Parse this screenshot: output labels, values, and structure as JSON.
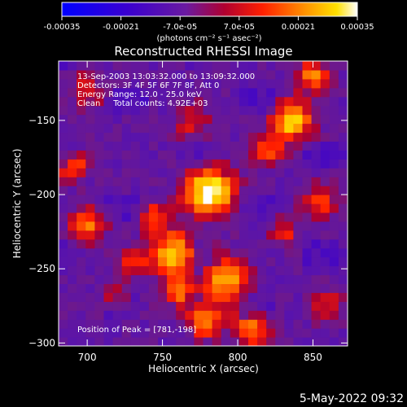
{
  "colorbar": {
    "tick_labels": [
      "-0.00035",
      "-0.00021",
      "-7.0e-05",
      "7.0e-05",
      "0.00021",
      "0.00035"
    ],
    "unit_label": "(photons cm⁻² s⁻¹ asec⁻²)"
  },
  "chart_data": {
    "type": "heatmap",
    "title": "Reconstructed RHESSI Image",
    "xlabel": "Heliocentric X (arcsec)",
    "ylabel": "Heliocentric Y (arcsec)",
    "xlim": [
      681,
      873
    ],
    "ylim": [
      -302,
      -110
    ],
    "x_ticks": [
      700,
      750,
      800,
      850
    ],
    "y_ticks": [
      -150,
      -200,
      -250,
      -300
    ],
    "color_range": [
      -0.00035,
      0.00035
    ],
    "colormap": "blue-purple-red-yellow-white",
    "annotations": [
      "13-Sep-2003 13:03:32.000 to 13:09:32.000",
      "Detectors: 3F 4F 5F 6F 7F 8F, Att 0",
      "Energy Range: 12.0 - 25.0 keV",
      "Clean     Total counts: 4.92E+03"
    ],
    "peak_label": "Position of Peak = [781,-198]",
    "peak": [
      781,
      -198
    ],
    "bright_sources": [
      {
        "x": 781,
        "y": -198,
        "level": 1.0,
        "sigma": 11
      },
      {
        "x": 758,
        "y": -240,
        "level": 0.85,
        "sigma": 10
      },
      {
        "x": 836,
        "y": -150,
        "level": 0.8,
        "sigma": 9
      },
      {
        "x": 792,
        "y": -258,
        "level": 0.7,
        "sigma": 10
      },
      {
        "x": 778,
        "y": -285,
        "level": 0.6,
        "sigma": 8
      },
      {
        "x": 810,
        "y": -290,
        "level": 0.55,
        "sigma": 9
      },
      {
        "x": 700,
        "y": -220,
        "level": 0.55,
        "sigma": 8
      },
      {
        "x": 690,
        "y": -180,
        "level": 0.5,
        "sigma": 7
      },
      {
        "x": 760,
        "y": -265,
        "level": 0.55,
        "sigma": 7
      },
      {
        "x": 745,
        "y": -215,
        "level": 0.5,
        "sigma": 7
      },
      {
        "x": 820,
        "y": -170,
        "level": 0.5,
        "sigma": 7
      },
      {
        "x": 855,
        "y": -205,
        "level": 0.45,
        "sigma": 8
      },
      {
        "x": 730,
        "y": -245,
        "level": 0.4,
        "sigma": 7
      },
      {
        "x": 850,
        "y": -120,
        "level": 0.55,
        "sigma": 8
      },
      {
        "x": 700,
        "y": -130,
        "level": 0.35,
        "sigma": 8
      },
      {
        "x": 770,
        "y": -150,
        "level": 0.35,
        "sigma": 8
      },
      {
        "x": 830,
        "y": -225,
        "level": 0.35,
        "sigma": 7
      },
      {
        "x": 860,
        "y": -275,
        "level": 0.35,
        "sigma": 7
      },
      {
        "x": 720,
        "y": -270,
        "level": 0.3,
        "sigma": 7
      }
    ]
  },
  "footer": {
    "date_stamp": "5-May-2022 09:32"
  }
}
